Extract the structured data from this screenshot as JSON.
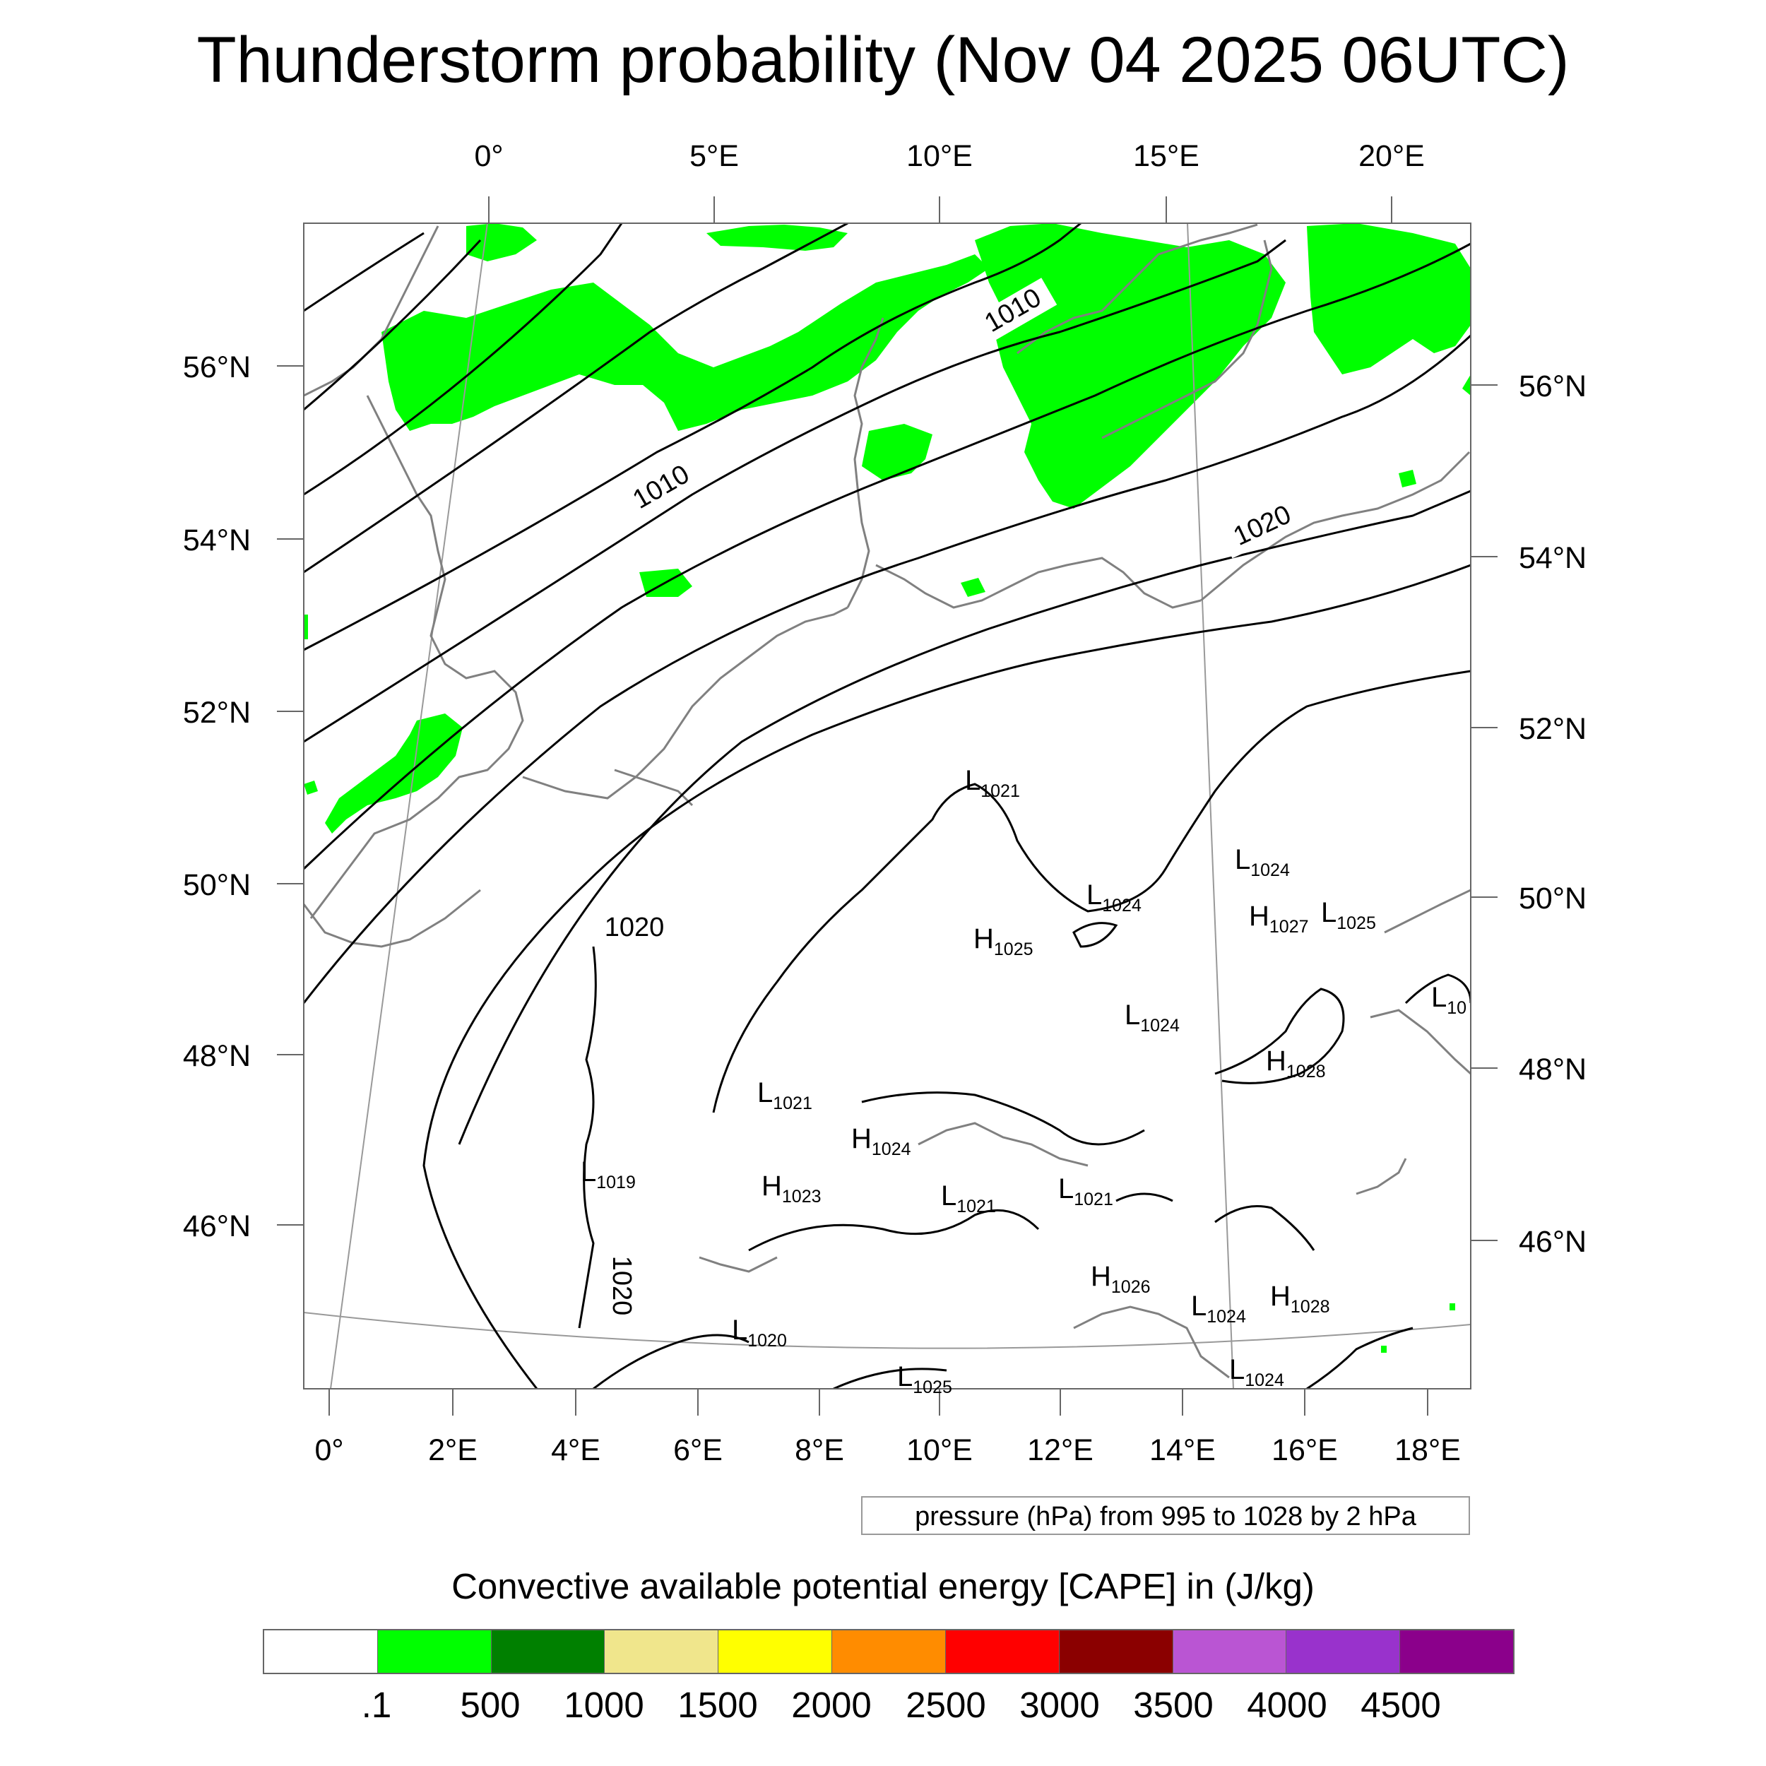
{
  "title": "Thunderstorm probability (Nov 04 2025 06UTC)",
  "map": {
    "top_lon_labels": [
      "0°",
      "5°E",
      "10°E",
      "15°E",
      "20°E"
    ],
    "bottom_lon_labels": [
      "0°",
      "2°E",
      "4°E",
      "6°E",
      "8°E",
      "10°E",
      "12°E",
      "14°E",
      "16°E",
      "18°E"
    ],
    "left_lat_labels": [
      "56°N",
      "54°N",
      "52°N",
      "50°N",
      "48°N",
      "46°N"
    ],
    "right_lat_labels": [
      "56°N",
      "54°N",
      "52°N",
      "50°N",
      "48°N",
      "46°N"
    ],
    "isobar_labels": [
      "1010",
      "1010",
      "1020",
      "1020",
      "1020"
    ],
    "pressure_centers": [
      {
        "type": "L",
        "value": "1021"
      },
      {
        "type": "L",
        "value": "1024"
      },
      {
        "type": "L",
        "value": "1024"
      },
      {
        "type": "H",
        "value": "1027"
      },
      {
        "type": "L",
        "value": "1025"
      },
      {
        "type": "H",
        "value": "1025"
      },
      {
        "type": "L",
        "value": "1024"
      },
      {
        "type": "H",
        "value": "1028"
      },
      {
        "type": "L",
        "value": "10"
      },
      {
        "type": "L",
        "value": "1021"
      },
      {
        "type": "H",
        "value": "1024"
      },
      {
        "type": "L",
        "value": "1019"
      },
      {
        "type": "H",
        "value": "1023"
      },
      {
        "type": "L",
        "value": "1021"
      },
      {
        "type": "L",
        "value": "1021"
      },
      {
        "type": "H",
        "value": "1026"
      },
      {
        "type": "L",
        "value": "1024"
      },
      {
        "type": "H",
        "value": "1028"
      },
      {
        "type": "L",
        "value": "1020"
      },
      {
        "type": "L",
        "value": "1024"
      },
      {
        "type": "L",
        "value": "1025"
      }
    ],
    "cape_color": "#00ff00",
    "isobar_color": "#000000",
    "coast_color": "#808080"
  },
  "info_box": "pressure (hPa) from 995 to 1028 by 2 hPa",
  "colorbar": {
    "title": "Convective available potential energy [CAPE] in (J/kg)",
    "colors": [
      "#ffffff",
      "#00ff00",
      "#008000",
      "#f0e68c",
      "#ffff00",
      "#ff8c00",
      "#ff0000",
      "#8b0000",
      "#ba55d3",
      "#9932cc",
      "#8b008b"
    ],
    "labels": [
      ".1",
      "500",
      "1000",
      "1500",
      "2000",
      "2500",
      "3000",
      "3500",
      "4000",
      "4500"
    ]
  }
}
